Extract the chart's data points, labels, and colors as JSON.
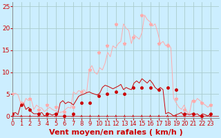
{
  "background_color": "#cceeff",
  "grid_color": "#aacccc",
  "xlabel": "Vent moyen/en rafales ( km/h )",
  "xlabel_color": "#cc0000",
  "xlabel_fontsize": 8,
  "tick_color": "#cc0000",
  "tick_fontsize": 6.5,
  "ylim": [
    -0.5,
    26
  ],
  "yticks": [
    0,
    5,
    10,
    15,
    20,
    25
  ],
  "xlim": [
    0,
    24
  ],
  "xticks": [
    0,
    1,
    2,
    3,
    4,
    5,
    6,
    7,
    8,
    9,
    10,
    11,
    12,
    13,
    14,
    15,
    16,
    17,
    18,
    19,
    20,
    21,
    22,
    23
  ],
  "line_color_light": "#ffaaaa",
  "line_color_dark": "#cc0000",
  "gust_hourly": [
    5.0,
    3.0,
    4.0,
    1.5,
    2.5,
    2.0,
    1.0,
    2.0,
    5.5,
    10.5,
    14.5,
    16.0,
    21.0,
    16.5,
    18.0,
    23.0,
    21.0,
    16.5,
    16.0,
    4.0,
    1.5,
    3.5,
    3.0,
    2.5
  ],
  "avg_hourly": [
    0.5,
    2.5,
    1.5,
    0.5,
    0.5,
    0.5,
    0.0,
    0.5,
    3.0,
    3.0,
    4.5,
    5.0,
    5.5,
    5.0,
    6.5,
    6.5,
    6.5,
    6.0,
    6.5,
    6.0,
    0.5,
    0.5,
    0.0,
    0.5
  ],
  "gust_fine": [
    5.0,
    5.2,
    4.8,
    3.0,
    2.5,
    4.0,
    3.5,
    3.8,
    1.5,
    2.5,
    2.0,
    1.8,
    1.0,
    1.5,
    2.0,
    1.5,
    1.2,
    1.0,
    0.8,
    1.0,
    1.5,
    2.0,
    1.8,
    5.5,
    5.0,
    5.8,
    5.5,
    6.0,
    5.2,
    10.5,
    11.5,
    10.0,
    9.5,
    11.0,
    10.5,
    12.0,
    14.5,
    13.5,
    16.0,
    15.5,
    16.5,
    17.0,
    21.0,
    20.0,
    19.5,
    16.5,
    18.5,
    18.0,
    17.5,
    19.0,
    23.0,
    22.0,
    21.5,
    20.5,
    21.0,
    19.0,
    16.5,
    17.0,
    16.0,
    16.5,
    15.5,
    4.0,
    3.0,
    2.0,
    1.5,
    2.5,
    1.0,
    0.5,
    3.5,
    3.0,
    4.0,
    3.5,
    3.0,
    2.5,
    2.0,
    2.5
  ],
  "avg_fine": [
    0.5,
    0.8,
    0.3,
    2.5,
    3.0,
    1.5,
    2.0,
    1.0,
    0.5,
    0.5,
    0.5,
    0.8,
    0.0,
    0.3,
    0.5,
    0.2,
    0.5,
    0.3,
    3.0,
    3.5,
    2.8,
    3.2,
    3.0,
    2.5,
    3.5,
    4.5,
    4.8,
    5.0,
    5.3,
    5.5,
    5.2,
    5.0,
    4.8,
    5.2,
    6.5,
    7.0,
    6.8,
    6.5,
    6.2,
    6.5,
    6.8,
    7.2,
    6.0,
    6.5,
    6.2,
    6.0,
    7.5,
    8.0,
    7.5,
    8.5,
    8.0,
    7.5,
    8.2,
    7.5,
    6.5,
    6.0,
    6.5,
    6.0,
    0.5,
    0.8,
    0.5,
    0.0,
    0.3,
    0.5,
    0.8,
    0.0,
    0.5,
    0.3,
    0.5,
    0.3,
    0.5,
    0.0,
    0.5,
    0.3,
    0.0,
    0.5
  ]
}
